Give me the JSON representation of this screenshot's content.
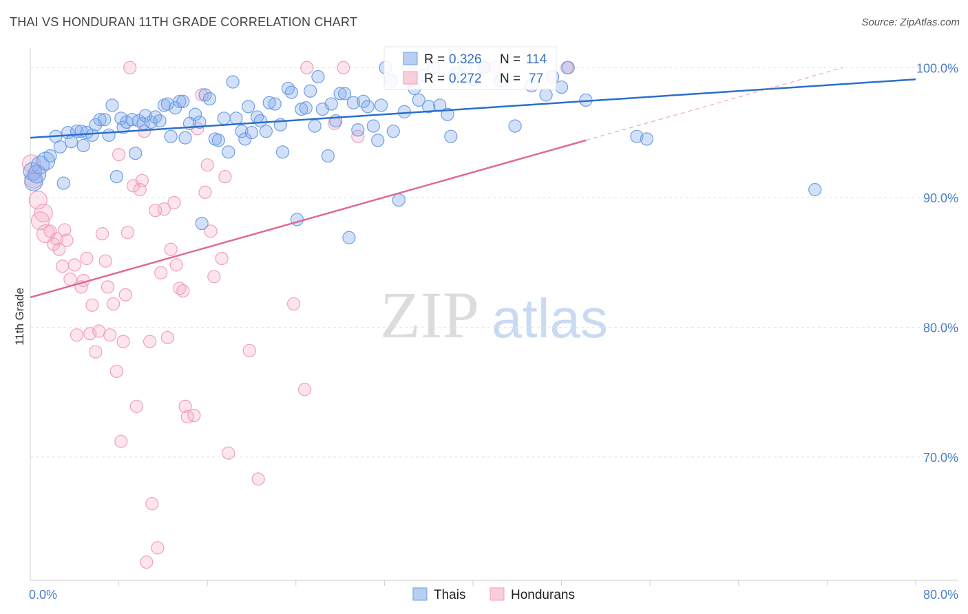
{
  "title": "THAI VS HONDURAN 11TH GRADE CORRELATION CHART",
  "source": "Source: ZipAtlas.com",
  "watermark": {
    "zip": "ZIP",
    "atlas": "atlas"
  },
  "colors": {
    "thai": "#6d9ee6",
    "thai_line": "#2a6fcc",
    "honduran": "#f0a0b8",
    "honduran_line": "#e06a90",
    "tick": "#4a7fc8"
  },
  "legend": {
    "r_label": "R = ",
    "n_label": "N = ",
    "thai": {
      "r": "0.326",
      "n": "114"
    },
    "honduran": {
      "r": "0.272",
      "n": "77"
    }
  },
  "chart_data": {
    "type": "scatter",
    "title": "THAI VS HONDURAN 11TH GRADE CORRELATION CHART",
    "xlabel": "",
    "ylabel": "11th Grade",
    "xlim": [
      0,
      80
    ],
    "ylim": [
      60.5,
      101.5
    ],
    "x_ticks": [
      "0.0%",
      "80.0%"
    ],
    "y_ticks": [
      {
        "value": 100,
        "label": "100.0%"
      },
      {
        "value": 90,
        "label": "90.0%"
      },
      {
        "value": 80,
        "label": "80.0%"
      },
      {
        "value": 70,
        "label": "70.0%"
      }
    ],
    "grid": true,
    "legend_position": "top-center",
    "series": [
      {
        "name": "Thais",
        "r": 0.326,
        "n": 114,
        "trend": {
          "x": [
            0,
            80
          ],
          "y": [
            94.6,
            99.1
          ]
        },
        "points": [
          [
            0.2,
            92.0
          ],
          [
            0.3,
            91.2
          ],
          [
            0.6,
            91.8
          ],
          [
            0.9,
            92.5
          ],
          [
            1.4,
            92.8
          ],
          [
            1.8,
            93.2
          ],
          [
            2.3,
            94.7
          ],
          [
            2.7,
            93.9
          ],
          [
            3.0,
            91.1
          ],
          [
            3.4,
            95.0
          ],
          [
            3.7,
            94.3
          ],
          [
            4.2,
            95.1
          ],
          [
            4.6,
            95.1
          ],
          [
            4.8,
            94.0
          ],
          [
            5.1,
            95.0
          ],
          [
            5.6,
            94.8
          ],
          [
            5.9,
            95.6
          ],
          [
            6.3,
            96.0
          ],
          [
            6.7,
            96.0
          ],
          [
            7.1,
            94.8
          ],
          [
            7.4,
            97.1
          ],
          [
            7.8,
            91.6
          ],
          [
            8.2,
            96.1
          ],
          [
            8.4,
            95.4
          ],
          [
            8.7,
            95.8
          ],
          [
            9.2,
            96.0
          ],
          [
            9.5,
            93.4
          ],
          [
            9.8,
            95.9
          ],
          [
            10.2,
            95.7
          ],
          [
            10.4,
            96.3
          ],
          [
            10.9,
            95.8
          ],
          [
            11.3,
            96.2
          ],
          [
            11.7,
            95.9
          ],
          [
            12.1,
            97.1
          ],
          [
            12.4,
            97.2
          ],
          [
            12.7,
            94.7
          ],
          [
            13.1,
            96.9
          ],
          [
            13.5,
            97.4
          ],
          [
            13.8,
            97.4
          ],
          [
            14.0,
            94.6
          ],
          [
            14.4,
            95.7
          ],
          [
            14.9,
            96.4
          ],
          [
            15.3,
            95.8
          ],
          [
            15.5,
            88.0
          ],
          [
            15.8,
            97.9
          ],
          [
            16.2,
            97.6
          ],
          [
            16.7,
            94.5
          ],
          [
            17.0,
            94.4
          ],
          [
            17.5,
            96.1
          ],
          [
            17.9,
            93.5
          ],
          [
            18.3,
            98.9
          ],
          [
            18.6,
            96.1
          ],
          [
            19.1,
            95.1
          ],
          [
            19.4,
            94.5
          ],
          [
            19.7,
            97.0
          ],
          [
            20.0,
            95.0
          ],
          [
            20.5,
            96.2
          ],
          [
            20.8,
            95.9
          ],
          [
            21.3,
            95.1
          ],
          [
            21.6,
            97.3
          ],
          [
            22.1,
            97.2
          ],
          [
            22.6,
            95.6
          ],
          [
            22.8,
            93.5
          ],
          [
            23.3,
            98.4
          ],
          [
            23.6,
            98.1
          ],
          [
            24.1,
            88.3
          ],
          [
            24.5,
            96.8
          ],
          [
            24.9,
            96.9
          ],
          [
            25.3,
            98.2
          ],
          [
            25.7,
            95.5
          ],
          [
            26.0,
            99.3
          ],
          [
            26.4,
            96.8
          ],
          [
            26.9,
            93.2
          ],
          [
            27.2,
            97.2
          ],
          [
            27.6,
            95.9
          ],
          [
            28.0,
            98.0
          ],
          [
            28.4,
            98.0
          ],
          [
            28.8,
            86.9
          ],
          [
            29.2,
            97.3
          ],
          [
            29.6,
            95.2
          ],
          [
            30.1,
            97.4
          ],
          [
            30.5,
            97.0
          ],
          [
            31.0,
            95.5
          ],
          [
            31.4,
            94.4
          ],
          [
            31.7,
            97.1
          ],
          [
            32.1,
            100.0
          ],
          [
            32.6,
            99.0
          ],
          [
            32.8,
            95.1
          ],
          [
            33.3,
            89.8
          ],
          [
            33.8,
            96.6
          ],
          [
            34.3,
            99.0
          ],
          [
            34.7,
            98.4
          ],
          [
            35.1,
            97.5
          ],
          [
            35.6,
            99.4
          ],
          [
            36.0,
            97.0
          ],
          [
            36.4,
            100.0
          ],
          [
            37.0,
            97.1
          ],
          [
            37.7,
            96.4
          ],
          [
            38.0,
            94.7
          ],
          [
            38.5,
            99.6
          ],
          [
            39.3,
            100.0
          ],
          [
            40.0,
            99.1
          ],
          [
            41.0,
            100.0
          ],
          [
            42.5,
            99.0
          ],
          [
            43.8,
            95.5
          ],
          [
            45.3,
            98.6
          ],
          [
            46.6,
            97.9
          ],
          [
            47.2,
            99.3
          ],
          [
            48.0,
            98.5
          ],
          [
            48.6,
            100.0
          ],
          [
            50.2,
            97.5
          ],
          [
            54.8,
            94.7
          ],
          [
            55.7,
            94.5
          ],
          [
            70.9,
            90.6
          ]
        ]
      },
      {
        "name": "Hondurans",
        "r": 0.272,
        "n": 77,
        "trend": {
          "x": [
            0,
            50.2
          ],
          "y": [
            82.3,
            94.4
          ]
        },
        "trend_dashed": {
          "x": [
            50.2,
            73.4
          ],
          "y": [
            94.4,
            100.0
          ]
        },
        "points": [
          [
            0.1,
            92.6
          ],
          [
            0.3,
            91.4
          ],
          [
            0.7,
            89.8
          ],
          [
            0.9,
            88.2
          ],
          [
            1.2,
            88.8
          ],
          [
            1.4,
            87.2
          ],
          [
            1.8,
            87.4
          ],
          [
            2.1,
            86.4
          ],
          [
            2.4,
            86.8
          ],
          [
            2.6,
            86.0
          ],
          [
            2.9,
            84.7
          ],
          [
            3.1,
            87.5
          ],
          [
            3.3,
            86.7
          ],
          [
            3.6,
            83.7
          ],
          [
            4.0,
            84.8
          ],
          [
            4.2,
            79.4
          ],
          [
            4.6,
            83.1
          ],
          [
            4.8,
            83.6
          ],
          [
            5.1,
            85.3
          ],
          [
            5.4,
            79.5
          ],
          [
            5.6,
            81.7
          ],
          [
            5.9,
            78.1
          ],
          [
            6.2,
            79.7
          ],
          [
            6.5,
            87.2
          ],
          [
            6.8,
            85.1
          ],
          [
            7.0,
            83.1
          ],
          [
            7.2,
            79.4
          ],
          [
            7.5,
            81.8
          ],
          [
            7.8,
            76.6
          ],
          [
            8.0,
            93.3
          ],
          [
            8.2,
            71.2
          ],
          [
            8.4,
            78.9
          ],
          [
            8.6,
            82.5
          ],
          [
            8.8,
            87.3
          ],
          [
            9.0,
            100.0
          ],
          [
            9.3,
            90.9
          ],
          [
            9.6,
            73.9
          ],
          [
            9.9,
            90.6
          ],
          [
            10.1,
            91.3
          ],
          [
            10.3,
            95.1
          ],
          [
            10.5,
            61.9
          ],
          [
            10.8,
            78.9
          ],
          [
            11.0,
            66.4
          ],
          [
            11.3,
            89.0
          ],
          [
            11.5,
            63.0
          ],
          [
            11.8,
            84.2
          ],
          [
            12.1,
            89.1
          ],
          [
            12.4,
            79.2
          ],
          [
            12.7,
            86.0
          ],
          [
            13.0,
            89.6
          ],
          [
            13.2,
            84.8
          ],
          [
            13.5,
            83.0
          ],
          [
            13.8,
            82.8
          ],
          [
            14.0,
            73.9
          ],
          [
            14.2,
            73.1
          ],
          [
            14.8,
            73.2
          ],
          [
            15.1,
            95.3
          ],
          [
            15.5,
            97.9
          ],
          [
            15.8,
            90.4
          ],
          [
            16.0,
            92.5
          ],
          [
            16.3,
            87.4
          ],
          [
            16.6,
            83.9
          ],
          [
            17.3,
            85.3
          ],
          [
            17.6,
            91.6
          ],
          [
            17.9,
            70.3
          ],
          [
            19.8,
            78.2
          ],
          [
            20.6,
            68.3
          ],
          [
            23.8,
            81.8
          ],
          [
            24.8,
            75.2
          ],
          [
            25.0,
            100.0
          ],
          [
            27.5,
            95.7
          ],
          [
            28.3,
            100.0
          ],
          [
            29.6,
            94.7
          ],
          [
            34.2,
            100.0
          ],
          [
            41.0,
            100.0
          ],
          [
            42.0,
            100.0
          ],
          [
            48.5,
            100.0
          ]
        ]
      }
    ]
  },
  "bottom_legend": {
    "thai": "Thais",
    "honduran": "Hondurans"
  }
}
